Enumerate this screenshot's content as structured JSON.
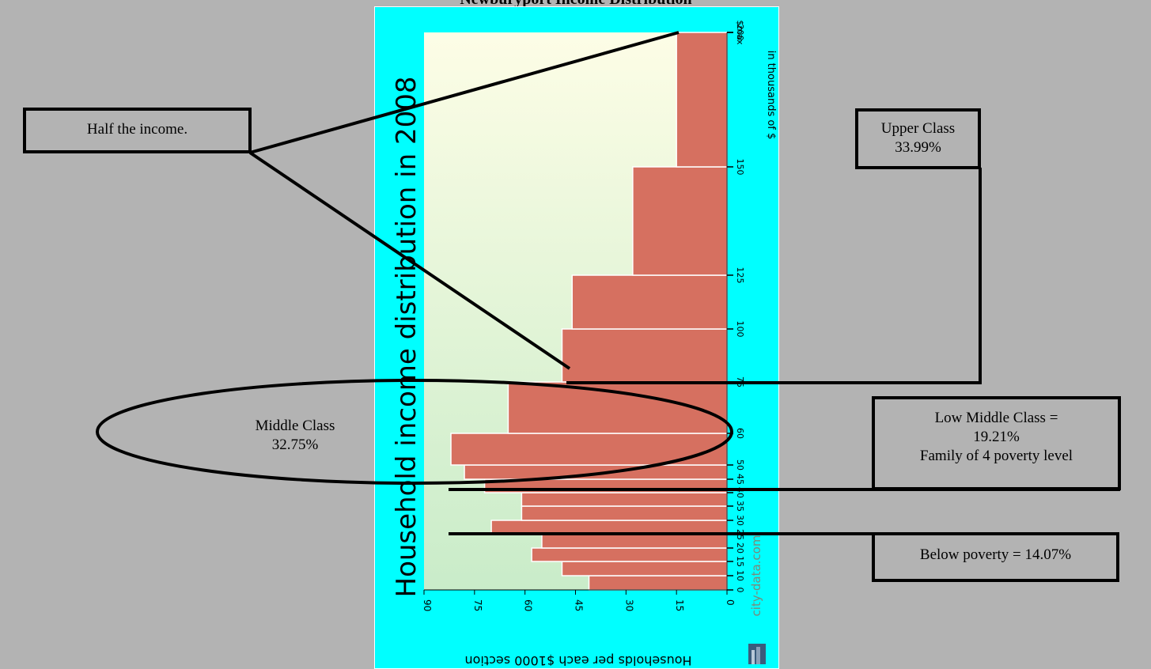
{
  "page": {
    "title": "Newburyport Income Distribution"
  },
  "annotations": {
    "half_income": "Half the income.",
    "upper_class": {
      "line1": "Upper Class",
      "line2": "33.99%"
    },
    "middle_class": {
      "line1": "Middle Class",
      "line2": "32.75%"
    },
    "low_middle_class": {
      "line1": "Low Middle Class =",
      "line2": "19.21%",
      "line3": "Family of 4 poverty level"
    },
    "below_poverty": "Below poverty = 14.07%"
  },
  "colors": {
    "frame": "#00ffff",
    "bar": "#d67060",
    "bar_edge": "#ffffff",
    "plot_bg_top": "#fdfde6",
    "plot_bg_bottom": "#c9ecc9",
    "page_bg": "#b3b3b3"
  },
  "chart_data": {
    "type": "bar",
    "orientation": "rotated 90° clockwise (income axis vertical, household count axis horizontal, reversed)",
    "title": "Household income distribution in 2008",
    "xlabel": "Households per each $1000 section",
    "ylabel": "in thousands of $",
    "xlim": [
      0,
      90
    ],
    "x_ticks": [
      "0",
      "15",
      "30",
      "45",
      "60",
      "75",
      "90"
    ],
    "y_tick_values": [
      0,
      10,
      15,
      20,
      25,
      30,
      35,
      40,
      45,
      50,
      60,
      75,
      100,
      125,
      150,
      200
    ],
    "y_ticks": [
      "0",
      "10",
      "15",
      "20",
      "25",
      "30",
      "35",
      "40",
      "45",
      "50",
      "60",
      "75",
      "100",
      "125",
      "150",
      "200",
      "$max"
    ],
    "watermark": "city-data.com",
    "bins": [
      {
        "from": "0",
        "to": "10",
        "value": 41
      },
      {
        "from": "10",
        "to": "15",
        "value": 49
      },
      {
        "from": "15",
        "to": "20",
        "value": 58
      },
      {
        "from": "20",
        "to": "25",
        "value": 55
      },
      {
        "from": "25",
        "to": "30",
        "value": 70
      },
      {
        "from": "30",
        "to": "35",
        "value": 61
      },
      {
        "from": "35",
        "to": "40",
        "value": 61
      },
      {
        "from": "40",
        "to": "45",
        "value": 72
      },
      {
        "from": "45",
        "to": "50",
        "value": 78
      },
      {
        "from": "50",
        "to": "60",
        "value": 82
      },
      {
        "from": "60",
        "to": "75",
        "value": 65
      },
      {
        "from": "75",
        "to": "100",
        "value": 49
      },
      {
        "from": "100",
        "to": "125",
        "value": 46
      },
      {
        "from": "125",
        "to": "150",
        "value": 28
      },
      {
        "from": "150",
        "to": "200",
        "value": 15
      },
      {
        "from": "200",
        "to": "$max",
        "value": 12
      }
    ]
  }
}
